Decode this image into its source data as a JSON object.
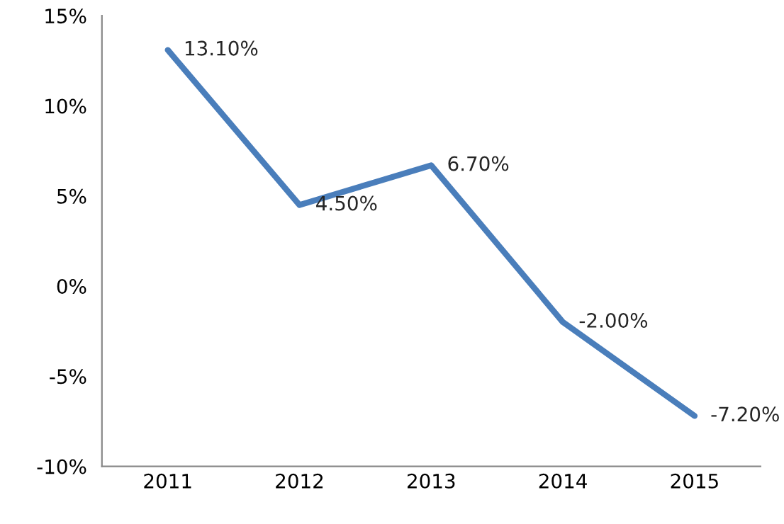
{
  "chart_data": {
    "type": "line",
    "categories": [
      "2011",
      "2012",
      "2013",
      "2014",
      "2015"
    ],
    "series": [
      {
        "color": "#4a7ebb",
        "values": [
          13.1,
          4.5,
          6.7,
          -2.0,
          -7.2
        ],
        "value_labels": [
          "13.10%",
          "4.50%",
          "6.70%",
          "-2.00%",
          "-7.20%"
        ]
      }
    ],
    "ylim": [
      -10,
      15
    ],
    "yticks": [
      {
        "value": -10,
        "label": "-10%"
      },
      {
        "value": -5,
        "label": "-5%"
      },
      {
        "value": 0,
        "label": "0%"
      },
      {
        "value": 5,
        "label": "5%"
      },
      {
        "value": 10,
        "label": "10%"
      },
      {
        "value": 15,
        "label": "15%"
      }
    ],
    "grid": false,
    "legend": false,
    "marker": "none",
    "line_style": "solid"
  }
}
